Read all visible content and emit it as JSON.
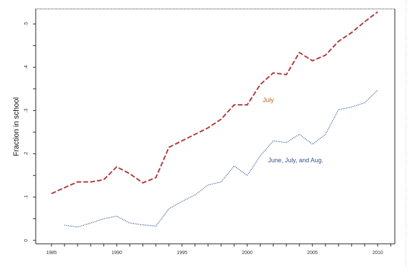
{
  "chart_data": {
    "type": "line",
    "title": "",
    "xlabel": "",
    "ylabel": "Fraction in school",
    "xlim": [
      1984.5,
      2011.3
    ],
    "ylim": [
      -0.008,
      0.535
    ],
    "x_ticks": [
      1985,
      1990,
      1995,
      2000,
      2005,
      2010
    ],
    "x_tick_labels": [
      "1985",
      "1990",
      "1995",
      "2000",
      "2005",
      "2010"
    ],
    "y_ticks": [
      0,
      0.1,
      0.2,
      0.3,
      0.4,
      0.5
    ],
    "y_tick_labels": [
      "0",
      ".1",
      ".2",
      ".3",
      ".4",
      ".5"
    ],
    "grid": false,
    "series": [
      {
        "name": "July",
        "label": "July",
        "color": "#b03a3a",
        "style": "dashed",
        "x": [
          1985,
          1986,
          1987,
          1988,
          1989,
          1990,
          1991,
          1992,
          1993,
          1994,
          1995,
          1996,
          1997,
          1998,
          1999,
          2000,
          2001,
          2002,
          2003,
          2004,
          2005,
          2006,
          2007,
          2008,
          2009,
          2010
        ],
        "values": [
          0.108,
          0.122,
          0.135,
          0.135,
          0.14,
          0.17,
          0.154,
          0.133,
          0.145,
          0.215,
          0.23,
          0.245,
          0.26,
          0.28,
          0.313,
          0.313,
          0.36,
          0.387,
          0.383,
          0.434,
          0.415,
          0.428,
          0.46,
          0.48,
          0.505,
          0.528
        ]
      },
      {
        "name": "June, July, and Aug.",
        "label": "June, July, and Aug.",
        "color": "#2a4a8a",
        "style": "dotted",
        "x": [
          1986,
          1987,
          1988,
          1989,
          1990,
          1991,
          1992,
          1993,
          1994,
          1995,
          1996,
          1997,
          1998,
          1999,
          2000,
          2001,
          2002,
          2003,
          2004,
          2005,
          2006,
          2007,
          2008,
          2009,
          2010
        ],
        "values": [
          0.035,
          0.031,
          0.04,
          0.05,
          0.056,
          0.04,
          0.036,
          0.033,
          0.073,
          0.09,
          0.105,
          0.128,
          0.135,
          0.172,
          0.15,
          0.195,
          0.23,
          0.226,
          0.245,
          0.222,
          0.245,
          0.302,
          0.308,
          0.318,
          0.347
        ]
      }
    ],
    "annotations": [
      {
        "text": "July",
        "x": 2001.2,
        "y": 0.32,
        "series": 0
      },
      {
        "text": "June, July, and Aug.",
        "x": 2001.6,
        "y": 0.18,
        "series": 1
      }
    ]
  }
}
